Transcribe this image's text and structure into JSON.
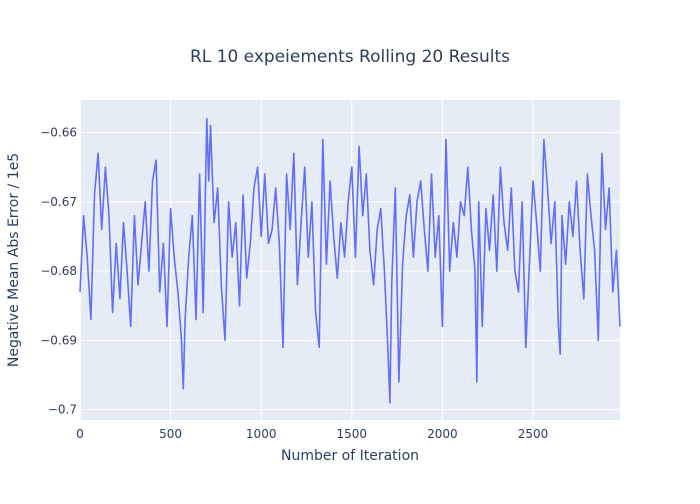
{
  "chart_data": {
    "type": "line",
    "title": "RL 10 expeiements Rolling 20 Results",
    "xlabel": "Number of Iteration",
    "ylabel": "Negative Mean Abs Error / 1e5",
    "xlim": [
      0,
      2980
    ],
    "ylim": [
      -0.7015,
      -0.6553
    ],
    "x_ticks": [
      0,
      500,
      1000,
      1500,
      2000,
      2500
    ],
    "y_ticks": [
      -0.66,
      -0.67,
      -0.68,
      -0.69,
      -0.7
    ],
    "x_tick_labels": [
      "0",
      "500",
      "1000",
      "1500",
      "2000",
      "2500"
    ],
    "y_tick_labels": [
      "−0.66",
      "−0.67",
      "−0.68",
      "−0.69",
      "−0.7"
    ],
    "grid": true,
    "line_color": "#636efa",
    "plot_bg": "#e5ecf6",
    "series": [
      {
        "x": [
          0,
          20,
          40,
          60,
          80,
          100,
          120,
          140,
          160,
          180,
          200,
          220,
          240,
          260,
          280,
          300,
          320,
          340,
          360,
          380,
          400,
          420,
          440,
          460,
          480,
          500,
          520,
          540,
          560,
          570,
          580,
          600,
          620,
          640,
          660,
          680,
          700,
          710,
          720,
          740,
          760,
          780,
          800,
          820,
          840,
          860,
          880,
          900,
          920,
          940,
          960,
          980,
          1000,
          1020,
          1040,
          1060,
          1080,
          1100,
          1120,
          1140,
          1160,
          1180,
          1200,
          1220,
          1240,
          1260,
          1280,
          1300,
          1320,
          1340,
          1360,
          1380,
          1400,
          1420,
          1440,
          1460,
          1480,
          1500,
          1520,
          1540,
          1560,
          1580,
          1600,
          1620,
          1640,
          1660,
          1680,
          1700,
          1710,
          1720,
          1740,
          1760,
          1780,
          1800,
          1820,
          1840,
          1860,
          1880,
          1900,
          1920,
          1940,
          1960,
          1980,
          2000,
          2020,
          2040,
          2060,
          2080,
          2100,
          2120,
          2140,
          2160,
          2180,
          2190,
          2200,
          2220,
          2240,
          2260,
          2280,
          2300,
          2320,
          2340,
          2360,
          2380,
          2400,
          2420,
          2440,
          2460,
          2480,
          2500,
          2520,
          2540,
          2560,
          2580,
          2600,
          2620,
          2640,
          2650,
          2660,
          2680,
          2700,
          2720,
          2740,
          2760,
          2780,
          2800,
          2820,
          2840,
          2860,
          2880,
          2900,
          2920,
          2940,
          2960,
          2980
        ],
        "values": [
          -0.683,
          -0.672,
          -0.678,
          -0.687,
          -0.669,
          -0.663,
          -0.674,
          -0.665,
          -0.672,
          -0.686,
          -0.676,
          -0.684,
          -0.673,
          -0.68,
          -0.688,
          -0.672,
          -0.682,
          -0.676,
          -0.67,
          -0.68,
          -0.667,
          -0.664,
          -0.683,
          -0.676,
          -0.688,
          -0.671,
          -0.678,
          -0.683,
          -0.69,
          -0.697,
          -0.687,
          -0.678,
          -0.672,
          -0.687,
          -0.666,
          -0.686,
          -0.658,
          -0.667,
          -0.659,
          -0.673,
          -0.668,
          -0.682,
          -0.69,
          -0.67,
          -0.678,
          -0.673,
          -0.685,
          -0.669,
          -0.681,
          -0.676,
          -0.668,
          -0.665,
          -0.675,
          -0.666,
          -0.676,
          -0.674,
          -0.668,
          -0.676,
          -0.691,
          -0.666,
          -0.674,
          -0.663,
          -0.682,
          -0.673,
          -0.665,
          -0.678,
          -0.67,
          -0.686,
          -0.691,
          -0.661,
          -0.679,
          -0.667,
          -0.675,
          -0.681,
          -0.673,
          -0.678,
          -0.67,
          -0.665,
          -0.678,
          -0.662,
          -0.672,
          -0.666,
          -0.677,
          -0.682,
          -0.674,
          -0.671,
          -0.68,
          -0.692,
          -0.699,
          -0.682,
          -0.668,
          -0.696,
          -0.679,
          -0.672,
          -0.669,
          -0.678,
          -0.67,
          -0.667,
          -0.674,
          -0.68,
          -0.666,
          -0.678,
          -0.672,
          -0.688,
          -0.661,
          -0.68,
          -0.673,
          -0.678,
          -0.67,
          -0.672,
          -0.665,
          -0.674,
          -0.68,
          -0.696,
          -0.67,
          -0.688,
          -0.671,
          -0.677,
          -0.669,
          -0.68,
          -0.665,
          -0.673,
          -0.677,
          -0.668,
          -0.68,
          -0.683,
          -0.67,
          -0.691,
          -0.679,
          -0.667,
          -0.673,
          -0.68,
          -0.661,
          -0.668,
          -0.676,
          -0.67,
          -0.688,
          -0.692,
          -0.672,
          -0.679,
          -0.67,
          -0.675,
          -0.667,
          -0.677,
          -0.684,
          -0.666,
          -0.672,
          -0.677,
          -0.69,
          -0.663,
          -0.674,
          -0.668,
          -0.683,
          -0.677,
          -0.688
        ]
      }
    ]
  }
}
